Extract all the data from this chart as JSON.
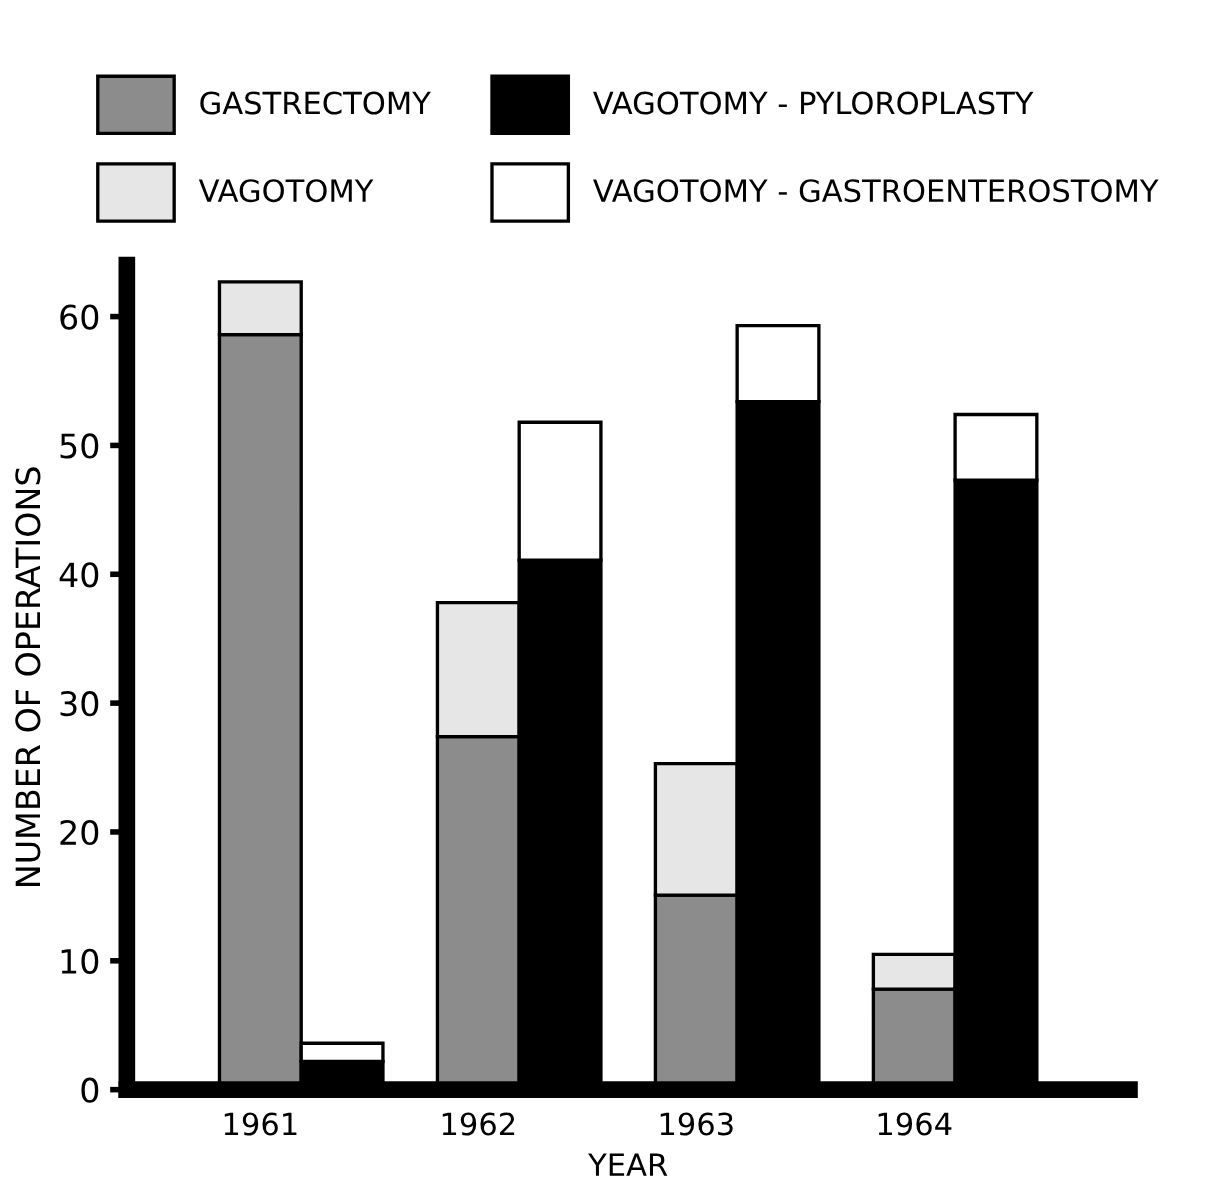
{
  "chart_data": {
    "type": "bar",
    "stacked": true,
    "xlabel": "YEAR",
    "ylabel": "NUMBER OF OPERATIONS",
    "categories": [
      "1961",
      null,
      "1962",
      null,
      "1963",
      null,
      "1964",
      null
    ],
    "ylim": [
      0,
      64
    ],
    "yticks": [
      0,
      10,
      20,
      30,
      40,
      50,
      60
    ],
    "grid": false,
    "legend": "top",
    "series": [
      {
        "name": "GASTRECTOMY",
        "color": "#8c8c8c",
        "values": [
          58.6,
          null,
          27.4,
          null,
          15.1,
          null,
          7.8,
          null
        ]
      },
      {
        "name": "VAGOTOMY",
        "color": "#e6e6e6",
        "values": [
          4.1,
          null,
          10.4,
          null,
          10.2,
          null,
          2.7,
          null
        ]
      },
      {
        "name": "VAGOTOMY - PYLOROPLASTY",
        "color": "#000000",
        "values": [
          null,
          2.2,
          null,
          41.1,
          null,
          53.4,
          null,
          47.3
        ]
      },
      {
        "name": "VAGOTOMY - GASTROENTEROSTOMY",
        "color": "#ffffff",
        "values": [
          null,
          1.4,
          null,
          10.7,
          null,
          5.9,
          null,
          5.1
        ]
      }
    ]
  }
}
